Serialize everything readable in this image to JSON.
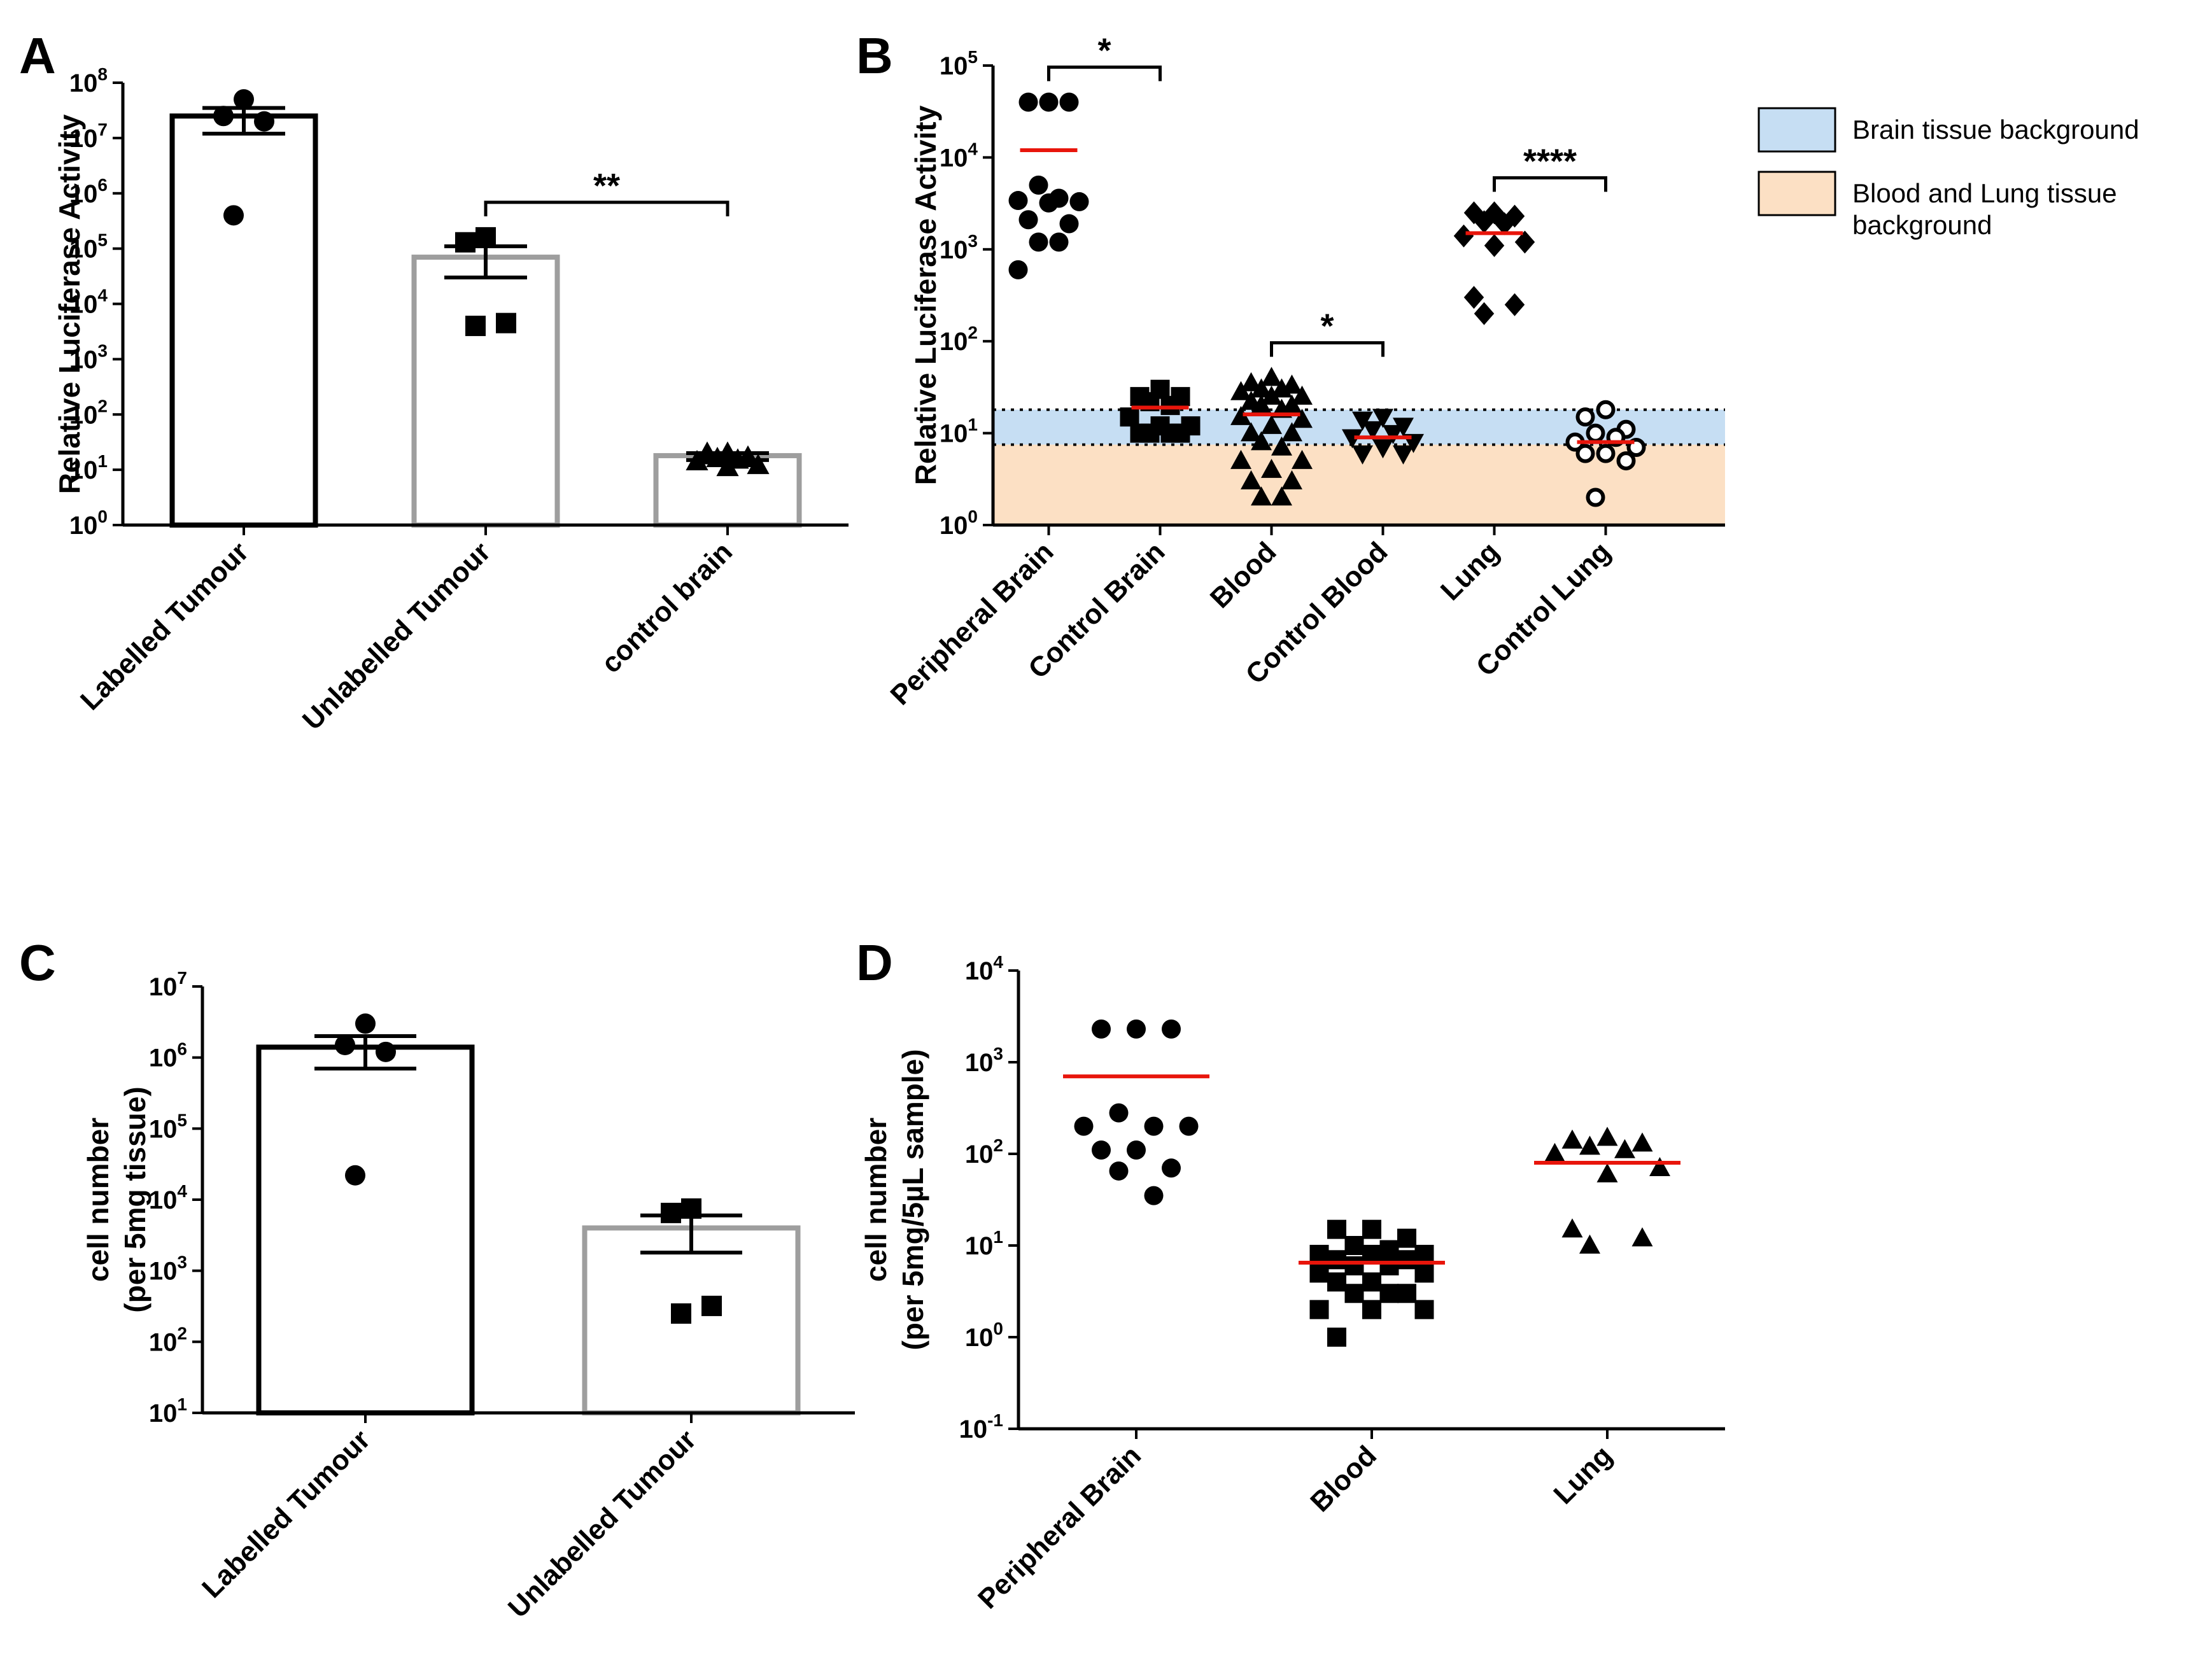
{
  "chart_data": [
    {
      "panel": "A",
      "type": "bar",
      "ylabel": "Relative Luciferase Activity",
      "yscale": "log",
      "ylim": [
        1,
        100000000
      ],
      "yticks": [
        {
          "base": "10",
          "exp": "0",
          "value": 1
        },
        {
          "base": "10",
          "exp": "1",
          "value": 10
        },
        {
          "base": "10",
          "exp": "2",
          "value": 100
        },
        {
          "base": "10",
          "exp": "3",
          "value": 1000
        },
        {
          "base": "10",
          "exp": "4",
          "value": 10000
        },
        {
          "base": "10",
          "exp": "5",
          "value": 100000
        },
        {
          "base": "10",
          "exp": "6",
          "value": 1000000
        },
        {
          "base": "10",
          "exp": "7",
          "value": 10000000
        },
        {
          "base": "10",
          "exp": "8",
          "value": 100000000
        }
      ],
      "categories": [
        "Labelled Tumour",
        "Unlabelled Tumour",
        "control brain"
      ],
      "bars": [
        {
          "value": 25000000,
          "err_low": 12000000,
          "err_high": 35000000,
          "color": "#000000",
          "marker": "circle",
          "points": [
            50000000,
            25000000,
            20000000,
            400000
          ]
        },
        {
          "value": 70000,
          "err_low": 30000,
          "err_high": 110000,
          "color": "#9e9e9e",
          "marker": "square",
          "points": [
            160000,
            130000,
            4500,
            4000
          ]
        },
        {
          "value": 18,
          "err_low": 15,
          "err_high": 20,
          "color": "#9e9e9e",
          "marker": "triangle",
          "points": [
            20,
            18,
            17,
            16,
            15,
            14,
            12,
            11,
            20,
            16
          ]
        }
      ],
      "significance": [
        {
          "from": 1,
          "to": 2,
          "label": "**"
        }
      ]
    },
    {
      "panel": "B",
      "type": "scatter",
      "ylabel": "Relative Luciferase Activity",
      "yscale": "log",
      "ylim": [
        1,
        100000
      ],
      "yticks": [
        {
          "base": "10",
          "exp": "0",
          "value": 1
        },
        {
          "base": "10",
          "exp": "1",
          "value": 10
        },
        {
          "base": "10",
          "exp": "2",
          "value": 100
        },
        {
          "base": "10",
          "exp": "3",
          "value": 1000
        },
        {
          "base": "10",
          "exp": "4",
          "value": 10000
        },
        {
          "base": "10",
          "exp": "5",
          "value": 100000
        }
      ],
      "categories": [
        "Peripheral Brain",
        "Control Brain",
        "Blood",
        "Control Blood",
        "Lung",
        "Control Lung"
      ],
      "groups": [
        {
          "marker": "circle",
          "mean": 12000,
          "points": [
            40000,
            40000,
            40000,
            5000,
            3600,
            3400,
            3300,
            3200,
            2100,
            1900,
            1200,
            1200,
            600
          ]
        },
        {
          "marker": "square",
          "mean": 19,
          "points": [
            30,
            25,
            25,
            22,
            20,
            15,
            12,
            12,
            10,
            10,
            10,
            10
          ]
        },
        {
          "marker": "triangle",
          "mean": 16,
          "points": [
            40,
            35,
            33,
            30,
            30,
            28,
            25,
            25,
            22,
            20,
            20,
            18,
            15,
            14,
            12,
            10,
            10,
            8,
            7,
            5,
            5,
            4,
            3,
            3,
            2,
            2
          ]
        },
        {
          "marker": "triangle-down",
          "mean": 9,
          "points": [
            15,
            14,
            12,
            11,
            10,
            9,
            8,
            7,
            6,
            6
          ]
        },
        {
          "marker": "diamond",
          "mean": 1500,
          "points": [
            2500,
            2500,
            2300,
            2000,
            1900,
            1400,
            1200,
            1100,
            300,
            250,
            200
          ]
        },
        {
          "marker": "open-circle",
          "mean": 8,
          "points": [
            18,
            15,
            11,
            10,
            9,
            8,
            7,
            6,
            6,
            5,
            2
          ]
        }
      ],
      "background_bands": [
        {
          "label": "Brain tissue background",
          "low": 7.5,
          "high": 18,
          "color": "#c6def3"
        },
        {
          "label": "Blood and Lung tissue background",
          "low": 1,
          "high": 7.5,
          "color": "#fce0c4"
        }
      ],
      "significance": [
        {
          "from": 0,
          "to": 1,
          "label": "*"
        },
        {
          "from": 2,
          "to": 3,
          "label": "*"
        },
        {
          "from": 4,
          "to": 5,
          "label": "****"
        }
      ],
      "legend": {
        "placement": "right",
        "entries": [
          {
            "label_lines": [
              "Brain tissue background"
            ],
            "color": "#c6def3"
          },
          {
            "label_lines": [
              "Blood and Lung tissue",
              "background"
            ],
            "color": "#fce0c4"
          }
        ]
      }
    },
    {
      "panel": "C",
      "type": "bar",
      "ylabel_lines": [
        "cell number",
        "(per 5mg tissue)"
      ],
      "yscale": "log",
      "ylim": [
        10,
        10000000
      ],
      "yticks": [
        {
          "base": "10",
          "exp": "1",
          "value": 10
        },
        {
          "base": "10",
          "exp": "2",
          "value": 100
        },
        {
          "base": "10",
          "exp": "3",
          "value": 1000
        },
        {
          "base": "10",
          "exp": "4",
          "value": 10000
        },
        {
          "base": "10",
          "exp": "5",
          "value": 100000
        },
        {
          "base": "10",
          "exp": "6",
          "value": 1000000
        },
        {
          "base": "10",
          "exp": "7",
          "value": 10000000
        }
      ],
      "categories": [
        "Labelled Tumour",
        "Unlabelled Tumour"
      ],
      "bars": [
        {
          "value": 1400000,
          "err_low": 700000,
          "err_high": 2000000,
          "color": "#000000",
          "marker": "circle",
          "points": [
            3000000,
            1500000,
            1200000,
            22000
          ]
        },
        {
          "value": 4000,
          "err_low": 1800,
          "err_high": 6000,
          "color": "#9e9e9e",
          "marker": "square",
          "points": [
            7500,
            6500,
            320,
            250
          ]
        }
      ]
    },
    {
      "panel": "D",
      "type": "scatter",
      "ylabel_lines": [
        "cell number",
        "(per 5mg/5µL sample)"
      ],
      "yscale": "log",
      "ylim": [
        0.1,
        10000
      ],
      "yticks": [
        {
          "base": "10",
          "exp": "-1",
          "value": 0.1
        },
        {
          "base": "10",
          "exp": "0",
          "value": 1
        },
        {
          "base": "10",
          "exp": "1",
          "value": 10
        },
        {
          "base": "10",
          "exp": "2",
          "value": 100
        },
        {
          "base": "10",
          "exp": "3",
          "value": 1000
        },
        {
          "base": "10",
          "exp": "4",
          "value": 10000
        }
      ],
      "categories": [
        "Peripheral Brain",
        "Blood",
        "Lung"
      ],
      "groups": [
        {
          "marker": "circle",
          "mean": 700,
          "points": [
            2300,
            2300,
            2300,
            280,
            200,
            200,
            200,
            110,
            110,
            70,
            65,
            35
          ]
        },
        {
          "marker": "square",
          "mean": 6.5,
          "points": [
            15,
            15,
            12,
            10,
            9,
            8,
            8,
            8,
            7,
            7,
            6,
            6,
            5,
            5,
            4,
            4,
            3,
            3,
            3,
            2,
            2,
            2,
            1
          ]
        },
        {
          "marker": "triangle",
          "mean": 80,
          "points": [
            150,
            140,
            130,
            120,
            110,
            100,
            70,
            60,
            15,
            12,
            10
          ]
        }
      ]
    }
  ]
}
